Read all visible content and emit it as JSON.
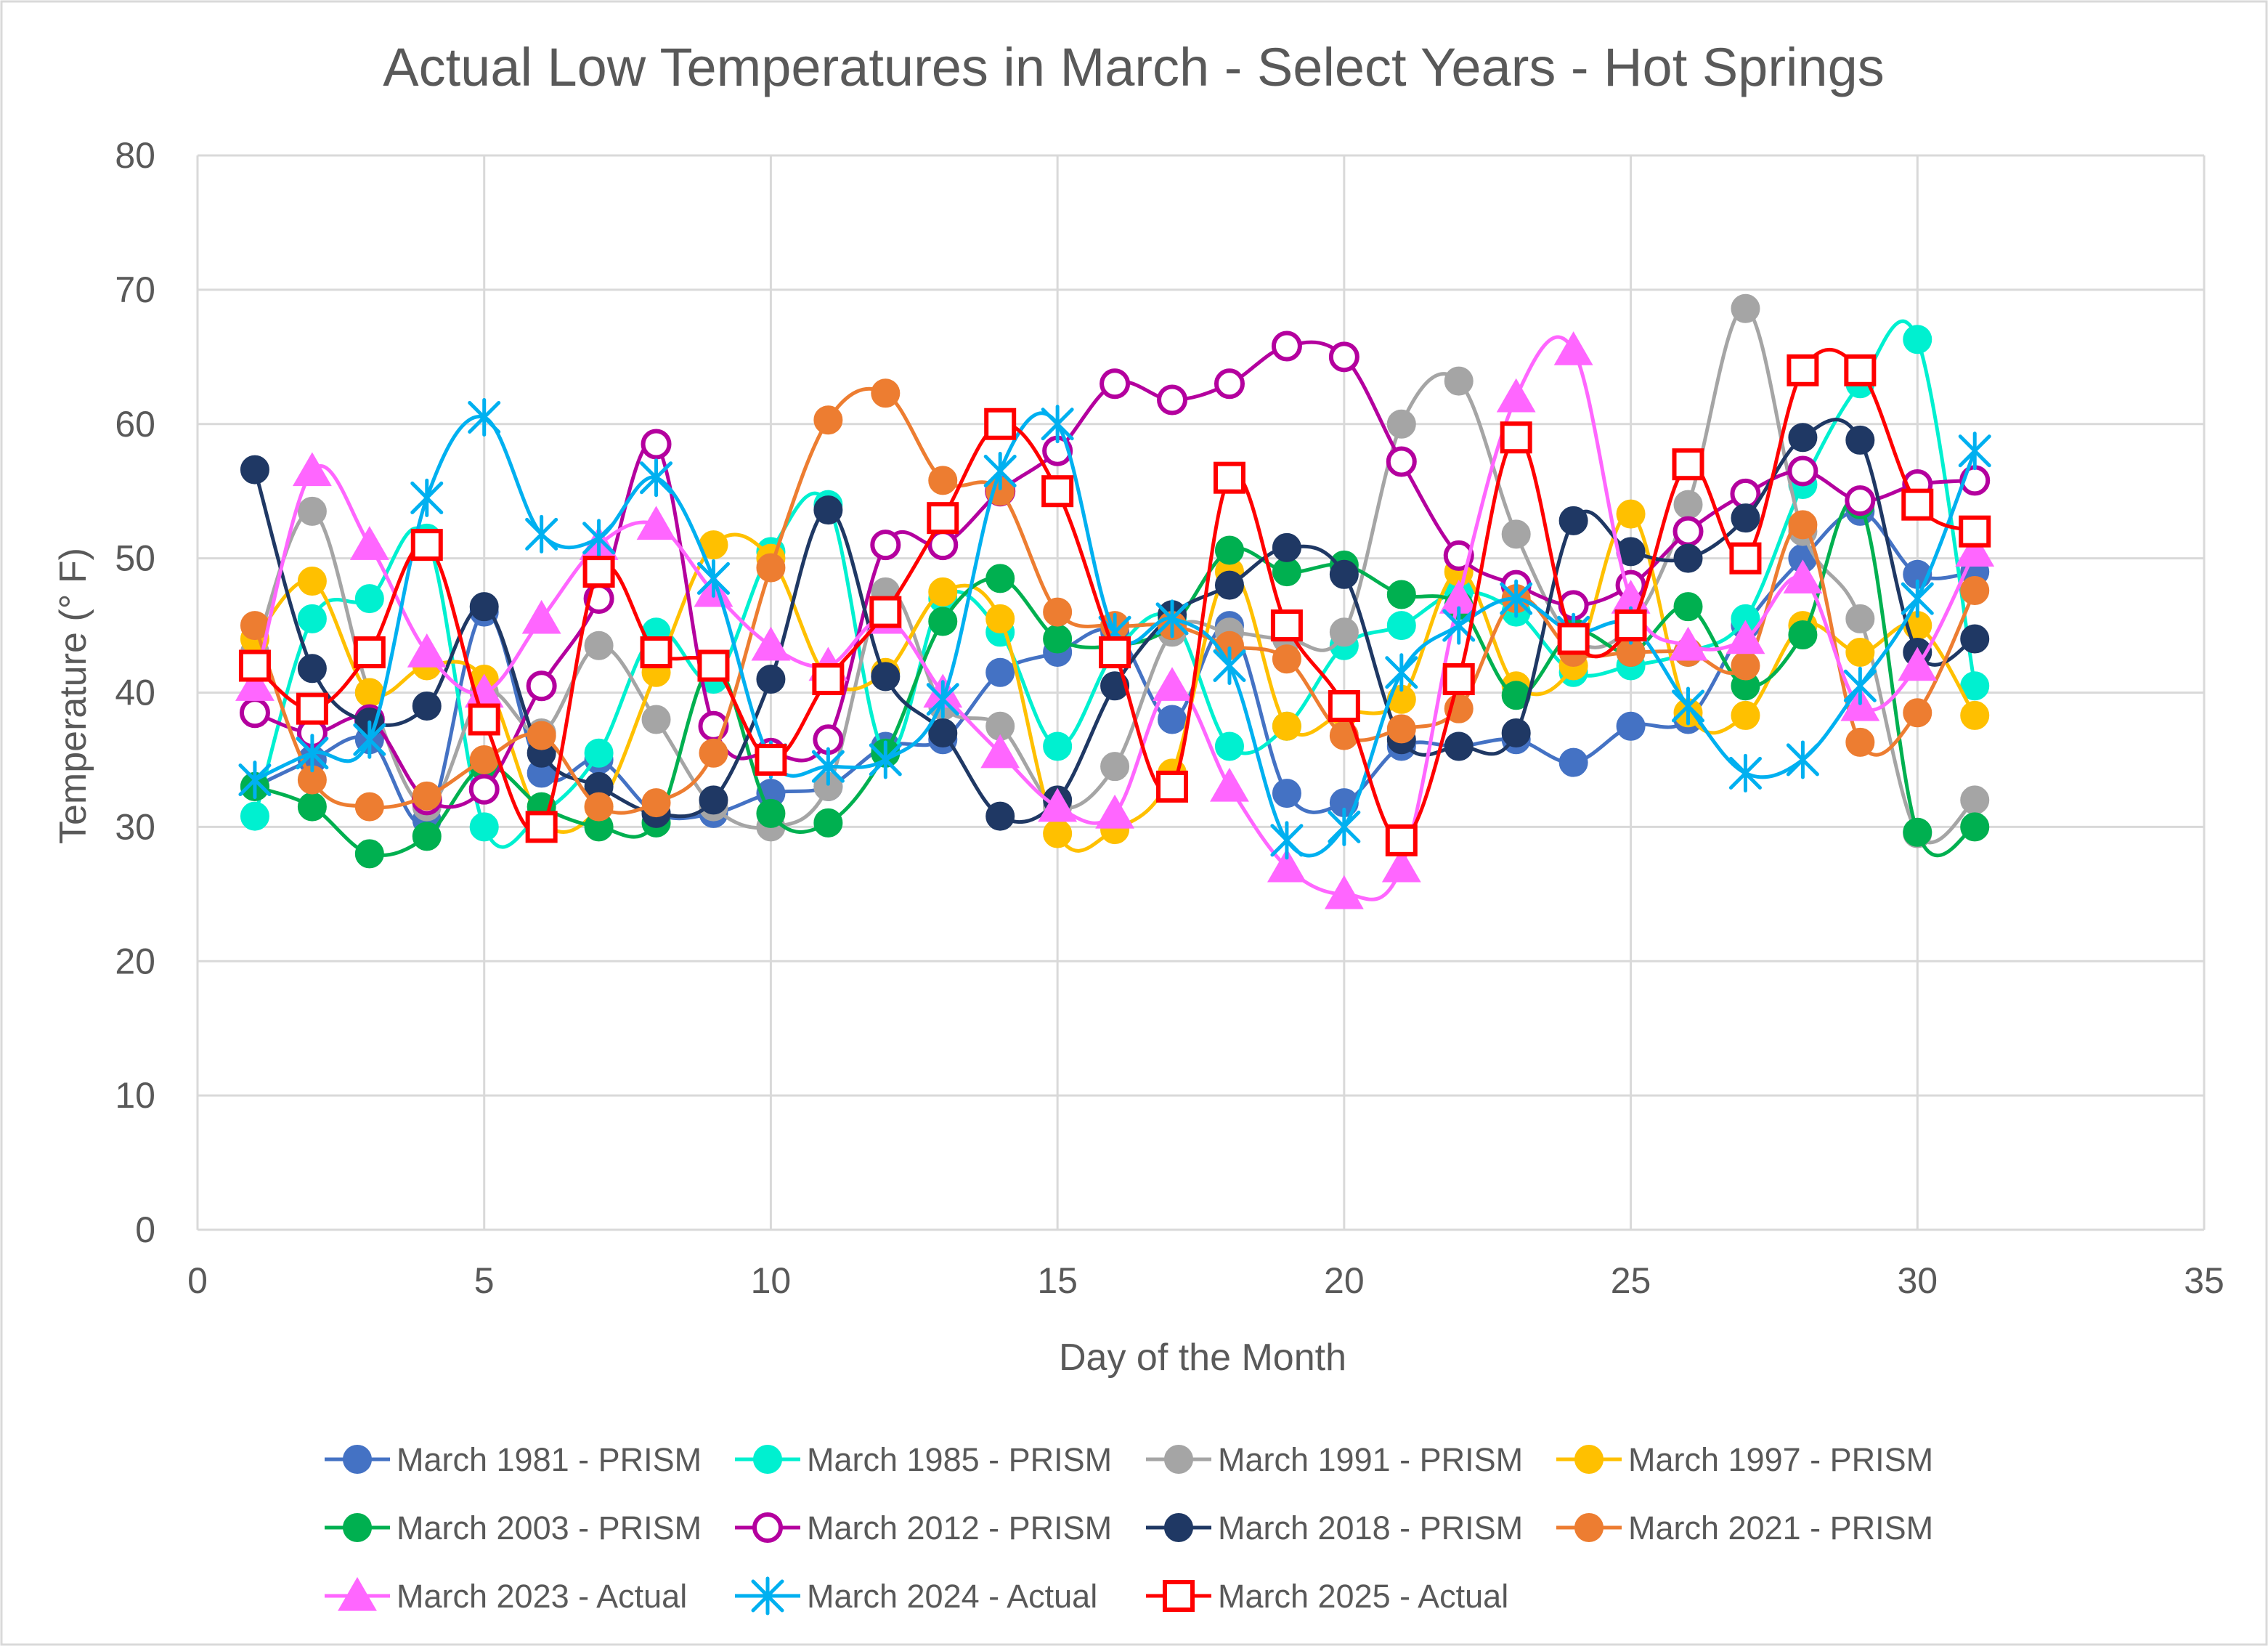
{
  "chart_data": {
    "type": "scatter",
    "title": "Actual Low Temperatures in March - Select Years - Hot Springs",
    "xlabel": "Day of the Month",
    "ylabel": "Temperature (° F)",
    "xlim": [
      0,
      35
    ],
    "ylim": [
      0,
      80
    ],
    "xticks": [
      0,
      5,
      10,
      15,
      20,
      25,
      30,
      35
    ],
    "yticks": [
      0,
      10,
      20,
      30,
      40,
      50,
      60,
      70,
      80
    ],
    "grid": true,
    "legend_position": "bottom",
    "x": [
      1,
      2,
      3,
      4,
      5,
      6,
      7,
      8,
      9,
      10,
      11,
      12,
      13,
      14,
      15,
      16,
      17,
      18,
      19,
      20,
      21,
      22,
      23,
      24,
      25,
      26,
      27,
      28,
      29,
      30,
      31
    ],
    "series": [
      {
        "name": "March 1981 - PRISM",
        "color": "#4472C4",
        "marker": "circle",
        "values": [
          33,
          35,
          36.5,
          30.5,
          46,
          34,
          35,
          31,
          31,
          32.5,
          33,
          36,
          36.5,
          41.5,
          43,
          44.5,
          38,
          45,
          32.5,
          31.8,
          36,
          36,
          36.5,
          34.8,
          37.5,
          38,
          45,
          50,
          53.5,
          48.8,
          49
        ]
      },
      {
        "name": "March 1985 - PRISM",
        "color": "#00F0D0",
        "marker": "circle",
        "values": [
          30.8,
          45.5,
          47,
          51.5,
          30,
          31,
          35.5,
          44.5,
          41,
          50.5,
          54,
          35.5,
          47,
          44.5,
          36,
          43,
          45.5,
          36,
          37.5,
          43.5,
          45,
          47.5,
          46,
          41.5,
          42,
          43,
          45.5,
          55.5,
          63,
          66.3,
          40.5
        ]
      },
      {
        "name": "March 1991 - PRISM",
        "color": "#A5A5A5",
        "marker": "circle",
        "values": [
          43,
          53.5,
          40,
          31.5,
          40,
          37,
          43.5,
          38,
          31.5,
          30,
          33,
          47.5,
          39,
          37.5,
          31.5,
          34.5,
          44.5,
          44.5,
          44,
          44.5,
          60,
          63.2,
          51.8,
          44,
          45,
          54,
          68.6,
          52,
          45.5,
          29.5,
          32
        ]
      },
      {
        "name": "March 1997 - PRISM",
        "color": "#FFC000",
        "marker": "circle",
        "values": [
          44,
          48.3,
          40,
          42,
          41,
          30.5,
          31.5,
          41.5,
          51,
          50,
          41,
          41.5,
          47.5,
          45.5,
          29.5,
          29.8,
          34,
          49,
          37.5,
          38.5,
          39.5,
          49,
          40.5,
          42,
          53.3,
          38.5,
          38.3,
          45,
          43,
          45,
          38.3
        ]
      },
      {
        "name": "March 2003 - PRISM",
        "color": "#00B050",
        "marker": "circle",
        "values": [
          33,
          31.5,
          28,
          29.3,
          34.5,
          31.5,
          30,
          30.3,
          42,
          31,
          30.3,
          35.5,
          45.3,
          48.5,
          44,
          43.5,
          45,
          50.6,
          49,
          49.5,
          47.3,
          46.5,
          39.8,
          44.5,
          43,
          46.4,
          40.5,
          44.3,
          54,
          29.6,
          30
        ]
      },
      {
        "name": "March 2012 - PRISM",
        "color": "#B4009E",
        "marker": "ring",
        "values": [
          38.5,
          37,
          38,
          32,
          32.8,
          40.5,
          47,
          58.5,
          37.5,
          35.5,
          36.5,
          51,
          51,
          55,
          58,
          63,
          61.8,
          63,
          65.8,
          65,
          57.2,
          50.2,
          48,
          46.5,
          48,
          52,
          54.8,
          56.5,
          54.3,
          55.5,
          55.8
        ]
      },
      {
        "name": "March 2018 - PRISM",
        "color": "#1F3864",
        "marker": "circle",
        "values": [
          56.6,
          41.8,
          37.8,
          39,
          46.4,
          35.5,
          33,
          31,
          32,
          41,
          53.6,
          41.2,
          37,
          30.8,
          32,
          40.5,
          45.8,
          48,
          50.8,
          48.8,
          36.5,
          36,
          37,
          52.8,
          50.5,
          50,
          53,
          59,
          58.8,
          43,
          44
        ]
      },
      {
        "name": "March 2021 - PRISM",
        "color": "#ED7D31",
        "marker": "circle",
        "values": [
          45,
          33.5,
          31.5,
          32.3,
          35,
          36.8,
          31.5,
          31.8,
          35.5,
          49.3,
          60.3,
          62.3,
          55.8,
          55,
          46,
          45,
          45,
          43.5,
          42.5,
          36.8,
          37.3,
          38.8,
          47,
          43,
          43,
          43,
          42,
          52.5,
          36.3,
          38.5,
          47.6
        ]
      },
      {
        "name": "March 2023 - Actual",
        "color": "#FF66FF",
        "marker": "triangle",
        "values": [
          40.5,
          56.5,
          51,
          43,
          40,
          45.5,
          51,
          52.5,
          47.5,
          43.5,
          42,
          45.5,
          40,
          35.5,
          31.5,
          31,
          40.5,
          33,
          27,
          25,
          27,
          47,
          62,
          65.5,
          47,
          43.5,
          44,
          48.5,
          39,
          42,
          50.5
        ]
      },
      {
        "name": "March 2024 - Actual",
        "color": "#00B0F0",
        "marker": "asterisk",
        "values": [
          33.5,
          35.5,
          36.5,
          54.5,
          60.5,
          51.8,
          51.5,
          56,
          48.5,
          35,
          34.5,
          35,
          39.5,
          56.5,
          60,
          44.5,
          45.5,
          42,
          29,
          30,
          41.5,
          45,
          47,
          44.5,
          45,
          39,
          34,
          35,
          40.5,
          47,
          58
        ]
      },
      {
        "name": "March 2025 - Actual",
        "color": "#FF0000",
        "marker": "square",
        "values": [
          42,
          38.8,
          43,
          51,
          38,
          30,
          49,
          43,
          42,
          35,
          41,
          46,
          53,
          60,
          55,
          43,
          33,
          56,
          45,
          39,
          29,
          41,
          59,
          44,
          45,
          57,
          50,
          64,
          64,
          54,
          52
        ]
      }
    ]
  }
}
